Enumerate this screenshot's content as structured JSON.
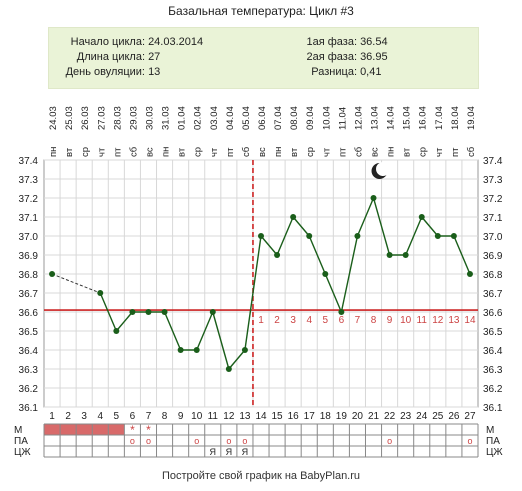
{
  "title": "Базальная температура: Цикл #3",
  "info": {
    "cycle_start_label": "Начало цикла:",
    "cycle_start_value": "24.03.2014",
    "cycle_length_label": "Длина цикла:",
    "cycle_length_value": "27",
    "ovulation_day_label": "День овуляции:",
    "ovulation_day_value": "13",
    "phase1_label": "1ая фаза:",
    "phase1_value": "36.54",
    "phase2_label": "2ая фаза:",
    "phase2_value": "36.95",
    "diff_label": "Разница:",
    "diff_value": "0,41"
  },
  "colors": {
    "line": "#1a5e1a",
    "point": "#1a5e1a",
    "coverline": "#cc2222",
    "ovulation": "#cc2222",
    "phase_numbers": "#cc4444",
    "menstruation": "#d86a6a",
    "grid": "#d8d8d8"
  },
  "rows": {
    "m_label": "М",
    "pa_label": "ПА",
    "cz_label": "ЦЖ"
  },
  "moon_icon": "moon-icon",
  "footer": "Постройте свой график на BabyPlan.ru",
  "chart_data": {
    "type": "line",
    "title": "Базальная температура: Цикл #3",
    "x": [
      1,
      2,
      3,
      4,
      5,
      6,
      7,
      8,
      9,
      10,
      11,
      12,
      13,
      14,
      15,
      16,
      17,
      18,
      19,
      20,
      21,
      22,
      23,
      24,
      25,
      26,
      27
    ],
    "dates": [
      "24.03",
      "25.03",
      "26.03",
      "27.03",
      "28.03",
      "29.03",
      "30.03",
      "31.03",
      "01.04",
      "02.04",
      "03.04",
      "04.04",
      "05.04",
      "06.04",
      "07.04",
      "08.04",
      "09.04",
      "10.04",
      "11.04",
      "12.04",
      "13.04",
      "14.04",
      "15.04",
      "16.04",
      "17.04",
      "18.04",
      "19.04"
    ],
    "weekdays": [
      "пн",
      "вт",
      "ср",
      "чт",
      "пт",
      "сб",
      "вс",
      "пн",
      "вт",
      "ср",
      "чт",
      "пт",
      "сб",
      "вс",
      "пн",
      "вт",
      "ср",
      "чт",
      "пт",
      "сб",
      "вс",
      "пн",
      "вт",
      "ср",
      "чт",
      "пт",
      "сб"
    ],
    "values": [
      36.8,
      null,
      null,
      36.7,
      36.5,
      36.6,
      36.6,
      36.6,
      36.4,
      36.4,
      36.6,
      36.3,
      36.4,
      37.0,
      36.9,
      37.1,
      37.0,
      36.8,
      36.6,
      37.0,
      37.2,
      36.9,
      36.9,
      37.1,
      37.0,
      37.0,
      36.8
    ],
    "ylim": [
      36.1,
      37.4
    ],
    "yticks": [
      "36.1",
      "36.2",
      "36.3",
      "36.4",
      "36.5",
      "36.6",
      "36.7",
      "36.8",
      "36.9",
      "37.0",
      "37.1",
      "37.2",
      "37.3",
      "37.4"
    ],
    "coverline": 36.61,
    "ovulation_day": 13,
    "moon_day": 21,
    "phase2_numbers": [
      "1",
      "2",
      "3",
      "4",
      "5",
      "6",
      "7",
      "8",
      "9",
      "10",
      "11",
      "12",
      "13",
      "14"
    ],
    "menstruation_days": [
      1,
      2,
      3,
      4,
      5
    ],
    "star_days": [
      6,
      7
    ],
    "pa_days": [
      6,
      7,
      10,
      12,
      13,
      22,
      27
    ],
    "cz_days": [
      11,
      12,
      13
    ],
    "pa_symbol": "o",
    "cz_symbol": "Я",
    "star_symbol": "*"
  }
}
